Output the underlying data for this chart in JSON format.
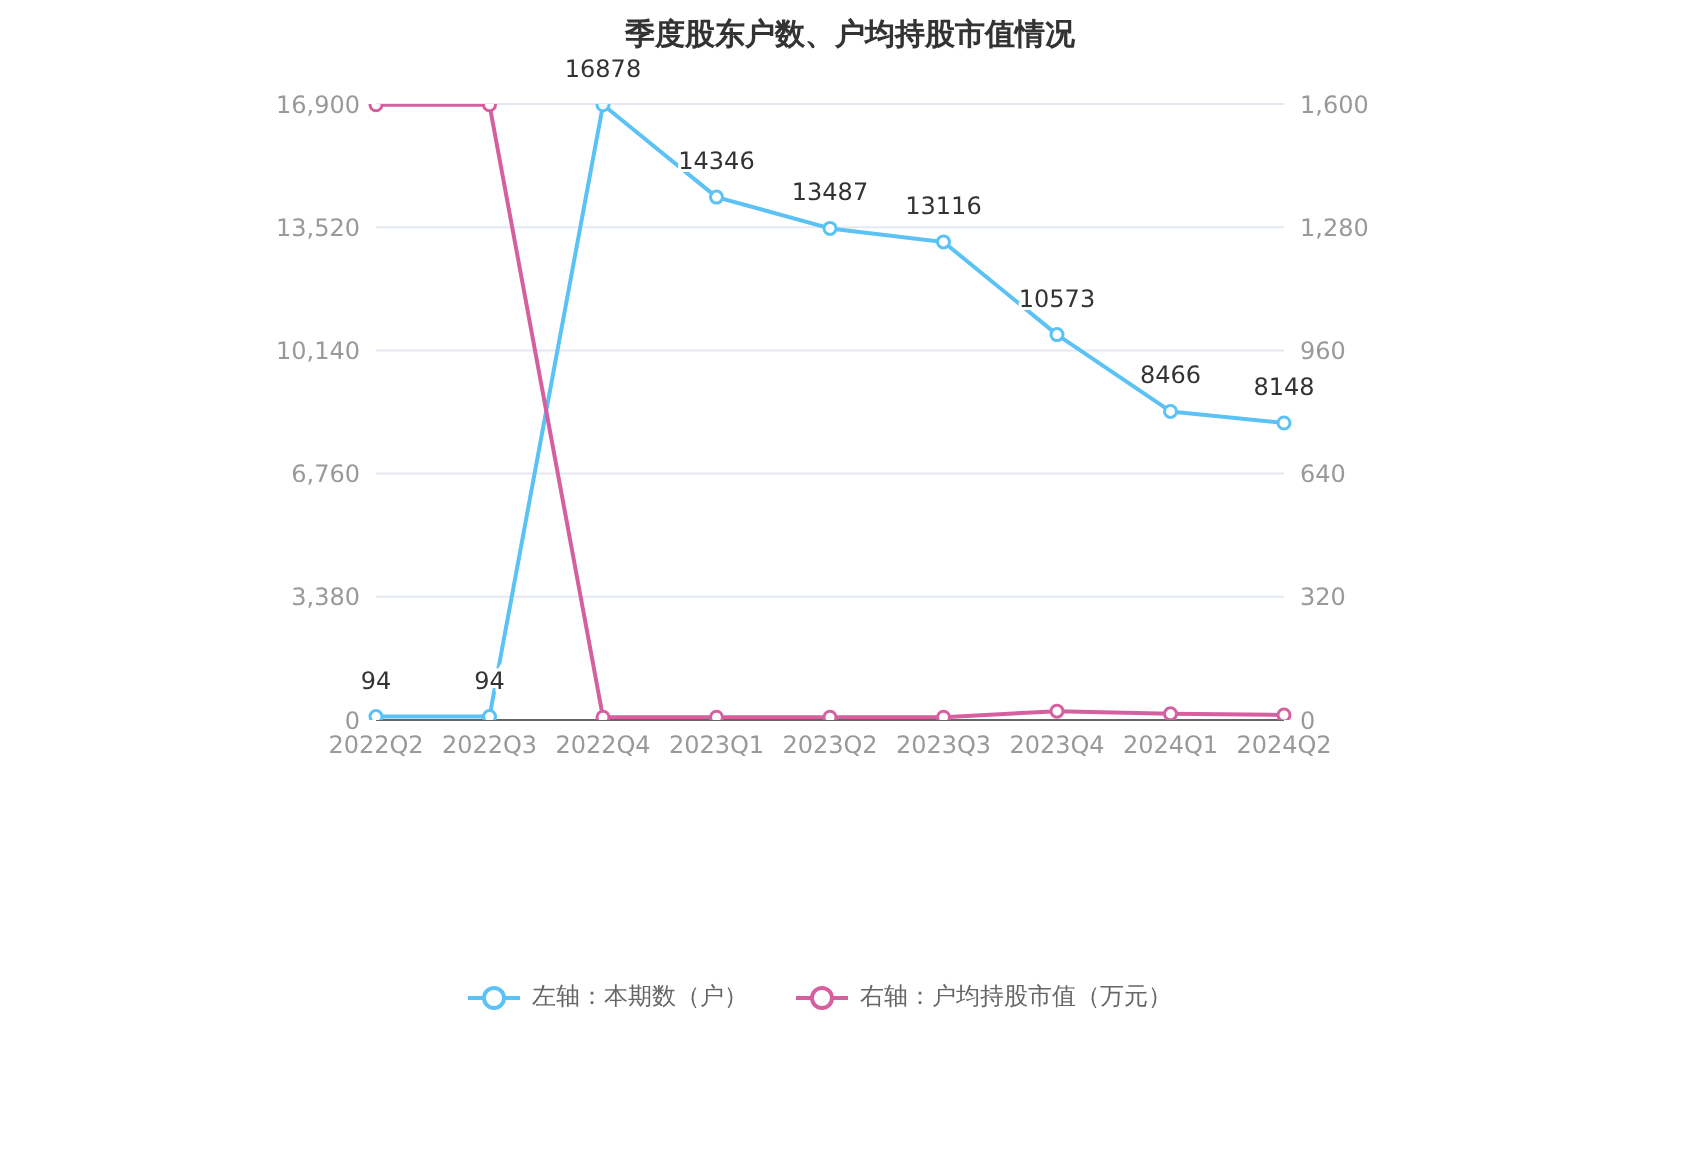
{
  "chart_data": {
    "type": "line",
    "title": "季度股东户数、户均持股市值情况",
    "categories": [
      "2022Q2",
      "2022Q3",
      "2022Q4",
      "2023Q1",
      "2023Q2",
      "2023Q3",
      "2023Q4",
      "2024Q1",
      "2024Q2"
    ],
    "series": [
      {
        "name": "左轴：本期数（户）",
        "color": "#5bc2f5",
        "values": [
          94,
          94,
          16878,
          14346,
          13487,
          13116,
          10573,
          8466,
          8148
        ],
        "value_labels": [
          "94",
          "94",
          "16878",
          "14346",
          "13487",
          "13116",
          "10573",
          "8466",
          "8148"
        ]
      },
      {
        "name": "右轴：户均持股市值（万元）",
        "color": "#d6609f",
        "axis": "y2",
        "values": [
          1598,
          1598,
          7,
          7,
          7,
          7,
          23,
          16,
          13
        ]
      }
    ],
    "ylim": [
      0,
      16900
    ],
    "yticks": [
      {
        "value": 0,
        "label": "0"
      },
      {
        "value": 3380,
        "label": "3,380"
      },
      {
        "value": 6760,
        "label": "6,760"
      },
      {
        "value": 10140,
        "label": "10,140"
      },
      {
        "value": 13520,
        "label": "13,520"
      },
      {
        "value": 16900,
        "label": "16,900"
      }
    ],
    "y2lim": [
      0,
      1600
    ],
    "y2ticks": [
      {
        "value": 0,
        "label": "0"
      },
      {
        "value": 320,
        "label": "320"
      },
      {
        "value": 640,
        "label": "640"
      },
      {
        "value": 960,
        "label": "960"
      },
      {
        "value": 1280,
        "label": "1,280"
      },
      {
        "value": 1600,
        "label": "1,600"
      }
    ],
    "grid": "y",
    "legend": "bottom",
    "marker": "circle",
    "line_style": "solid"
  }
}
